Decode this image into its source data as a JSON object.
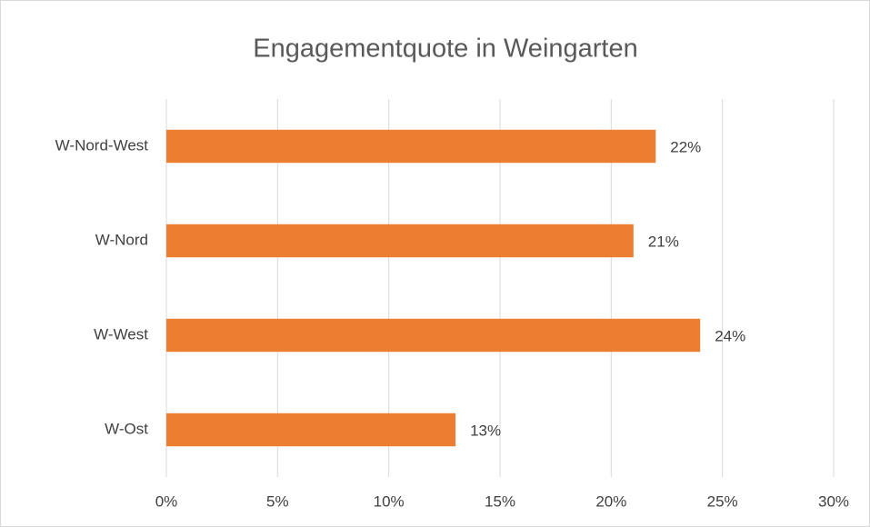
{
  "chart_data": {
    "type": "bar",
    "orientation": "horizontal",
    "title": "Engagementquote in Weingarten",
    "categories": [
      "W-Nord-West",
      "W-Nord",
      "W-West",
      "W-Ost"
    ],
    "values": [
      22,
      21,
      24,
      13
    ],
    "value_labels": [
      "22%",
      "21%",
      "24%",
      "13%"
    ],
    "color": "#ed7d31",
    "xlim": [
      0,
      30
    ],
    "xticks": [
      {
        "value": 0,
        "label": "0%"
      },
      {
        "value": 5,
        "label": "5%"
      },
      {
        "value": 10,
        "label": "10%"
      },
      {
        "value": 15,
        "label": "15%"
      },
      {
        "value": 20,
        "label": "20%"
      },
      {
        "value": 25,
        "label": "25%"
      },
      {
        "value": 30,
        "label": "30%"
      }
    ],
    "grid": true
  }
}
